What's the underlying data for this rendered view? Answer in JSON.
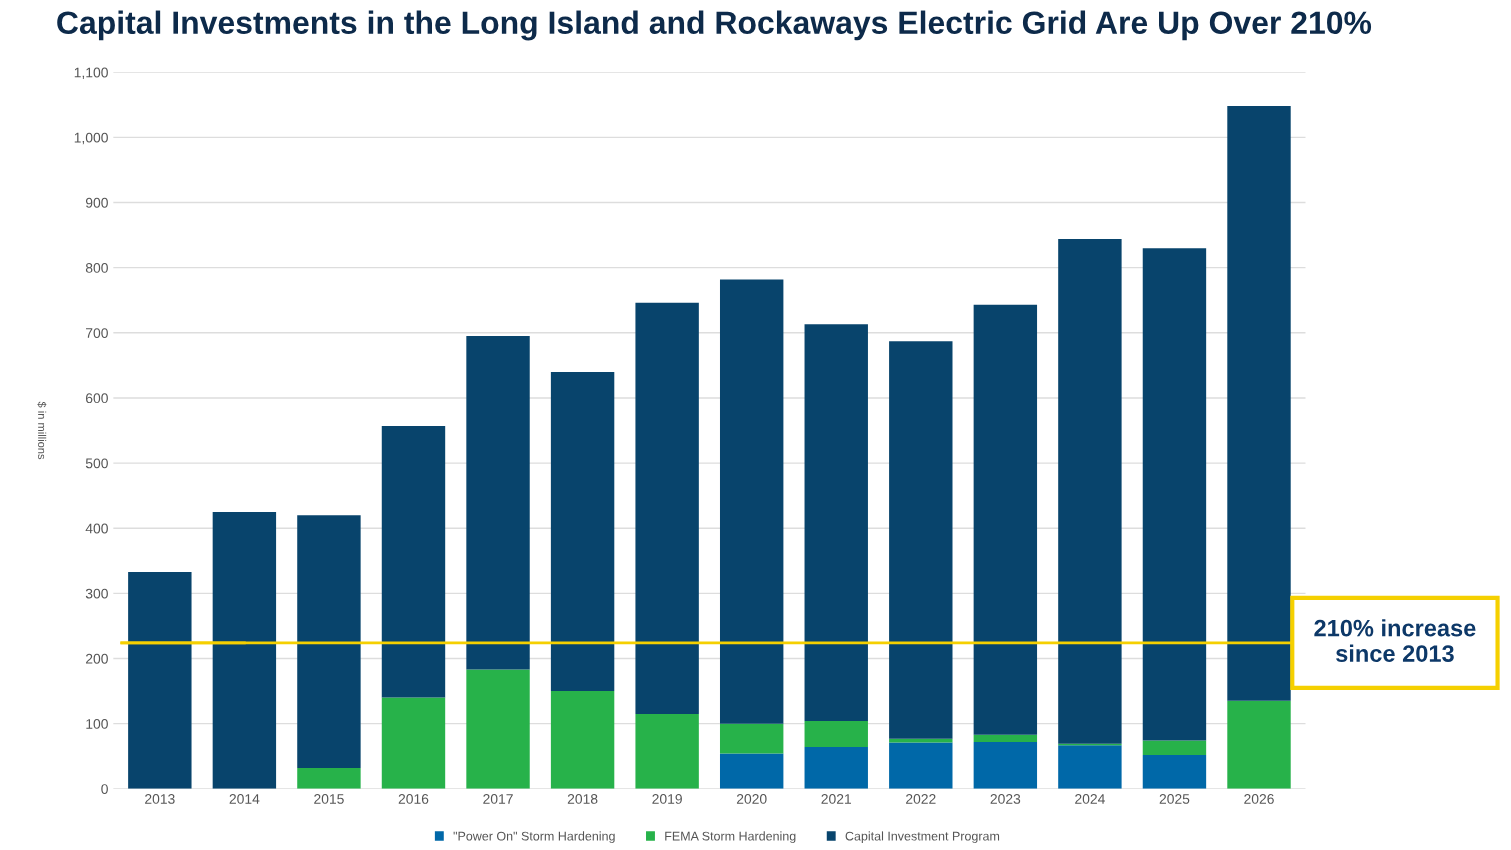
{
  "chart_data": {
    "type": "bar",
    "title": "Capital Investments in the Long Island and Rockaways Electric Grid Are Up Over 210%",
    "ylabel": "$ in millions",
    "categories": [
      "2013",
      "2014",
      "2015",
      "2016",
      "2017",
      "2018",
      "2019",
      "2020",
      "2021",
      "2022",
      "2023",
      "2024",
      "2025",
      "2026"
    ],
    "stacked": true,
    "series": [
      {
        "name": "\"Power On\" Storm Hardening",
        "color": "#0068a8",
        "values": [
          0,
          0,
          0,
          0,
          0,
          0,
          0,
          54,
          64,
          71,
          72,
          67,
          52,
          0
        ]
      },
      {
        "name": "FEMA Storm Hardening",
        "color": "#27b24a",
        "values": [
          0,
          0,
          32,
          140,
          183,
          150,
          115,
          46,
          40,
          6,
          11,
          2,
          22,
          135
        ]
      },
      {
        "name": "Capital Investment Program",
        "color": "#08446c",
        "values": [
          333,
          425,
          388,
          417,
          512,
          490,
          631,
          682,
          609,
          610,
          660,
          775,
          756,
          913
        ]
      }
    ],
    "ylim": [
      0,
      1100
    ],
    "yticks": [
      0,
      100,
      200,
      300,
      400,
      500,
      600,
      700,
      800,
      900,
      {
        "value": 1000,
        "label": "1,000"
      },
      {
        "value": 1100,
        "label": "1,100"
      }
    ],
    "grid": "y",
    "legend": "bottom",
    "ref_lines": [
      {
        "axis": "y",
        "value": 224,
        "label": "210% increase\nsince 2013",
        "color": "#f5d000"
      }
    ]
  }
}
